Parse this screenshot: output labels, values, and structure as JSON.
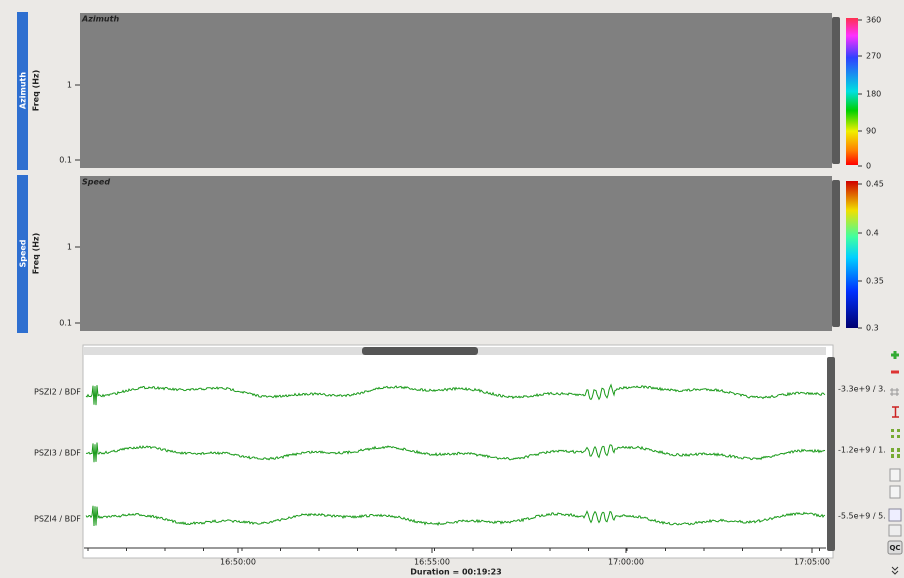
{
  "panels": [
    {
      "tab": "Azimuth",
      "y_label": "Freq (Hz)",
      "title": "Azimuth",
      "freq_ticks": [
        "1",
        "0.1"
      ],
      "colorbar_ticks": [
        "360",
        "270",
        "180",
        "90",
        "0"
      ]
    },
    {
      "tab": "Speed",
      "y_label": "Freq (Hz)",
      "title": "Speed",
      "freq_ticks": [
        "1",
        "0.1"
      ],
      "colorbar_ticks": [
        "0.45",
        "0.4",
        "0.35",
        "0.3"
      ]
    }
  ],
  "traces": [
    {
      "label": "PSZI2 / BDF",
      "range": "-3.3e+9 / 3."
    },
    {
      "label": "PSZI3 / BDF",
      "range": "-1.2e+9 / 1."
    },
    {
      "label": "PSZI4 / BDF",
      "range": "-5.5e+9 / 5."
    }
  ],
  "time_ticks": [
    "16:50:00",
    "16:55:00",
    "17:00:00",
    "17:05:00"
  ],
  "duration": "Duration = 00:19:23",
  "toolbar": {
    "qc": "QC"
  }
}
